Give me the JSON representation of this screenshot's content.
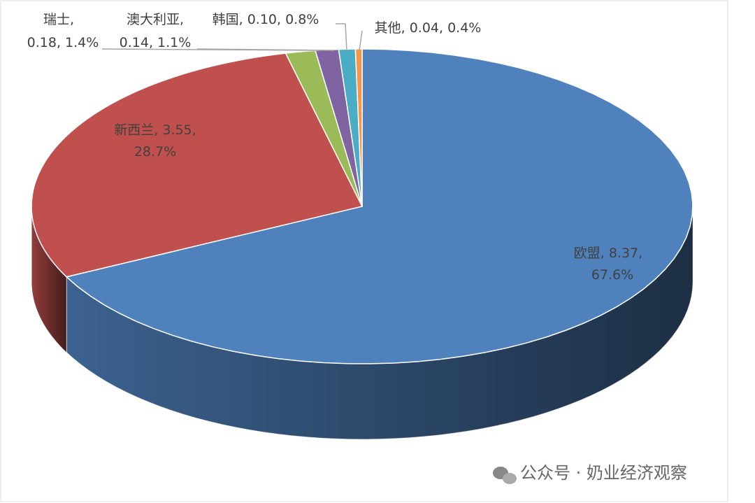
{
  "chart_data": {
    "type": "pie",
    "categories": [
      "欧盟",
      "新西兰",
      "瑞士",
      "澳大利亚",
      "韩国",
      "其他"
    ],
    "values": [
      8.37,
      3.55,
      0.18,
      0.14,
      0.1,
      0.04
    ],
    "value_labels": [
      "8.37",
      "3.55",
      "0.18",
      "0.14",
      "0.10",
      "0.04"
    ],
    "percent_labels": [
      "67.6%",
      "28.7%",
      "1.4%",
      "1.1%",
      "0.8%",
      "0.4%"
    ],
    "separator": ",",
    "colors": [
      "#4f81bd",
      "#c0504d",
      "#9bbb59",
      "#8064a2",
      "#4bacc6",
      "#f79646"
    ]
  },
  "watermark": "公众号 · 奶业经济观察"
}
